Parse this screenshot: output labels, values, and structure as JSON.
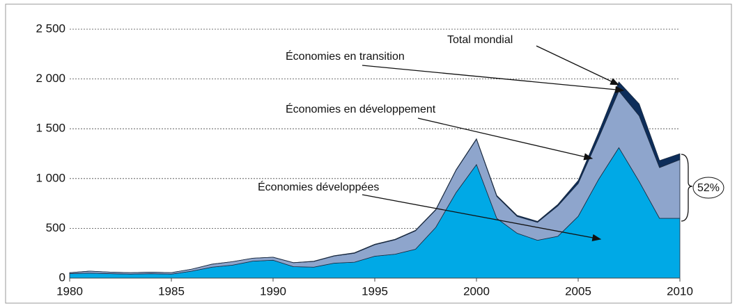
{
  "chart_data": {
    "type": "stacked_area",
    "x": [
      1980,
      1981,
      1982,
      1983,
      1984,
      1985,
      1986,
      1987,
      1988,
      1989,
      1990,
      1991,
      1992,
      1993,
      1994,
      1995,
      1996,
      1997,
      1998,
      1999,
      2000,
      2001,
      2002,
      2003,
      2004,
      2005,
      2006,
      2007,
      2008,
      2009,
      2010
    ],
    "xlim": [
      1980,
      2010
    ],
    "xticks": [
      1980,
      1985,
      1990,
      1995,
      2000,
      2005,
      2010
    ],
    "ylim": [
      0,
      2500
    ],
    "yticks": [
      0,
      {
        "value": 500,
        "label": "500"
      },
      {
        "value": 1000,
        "label": "1 000"
      },
      {
        "value": 1500,
        "label": "1 500"
      },
      {
        "value": 2000,
        "label": "2 000"
      },
      {
        "value": 2500,
        "label": "2 500"
      }
    ],
    "grid": true,
    "series": [
      {
        "name": "Économies développées",
        "color": "#00a9e6",
        "values": [
          45,
          50,
          45,
          40,
          45,
          40,
          70,
          110,
          130,
          170,
          180,
          115,
          110,
          150,
          160,
          220,
          240,
          290,
          510,
          860,
          1140,
          600,
          450,
          380,
          420,
          620,
          990,
          1310,
          970,
          600,
          600
        ]
      },
      {
        "name": "Économies en développement",
        "color": "#8ea5cc",
        "values": [
          10,
          20,
          15,
          15,
          15,
          15,
          20,
          30,
          35,
          30,
          30,
          40,
          57,
          72,
          90,
          115,
          145,
          185,
          175,
          225,
          255,
          220,
          170,
          180,
          305,
          330,
          415,
          570,
          660,
          510,
          590
        ]
      },
      {
        "name": "Économies en transition",
        "color": "#0d2d5a",
        "values": [
          0,
          0,
          0,
          0,
          0,
          0,
          0,
          0,
          0,
          0,
          0,
          0,
          3,
          3,
          5,
          5,
          5,
          5,
          5,
          5,
          5,
          10,
          10,
          10,
          15,
          30,
          55,
          90,
          120,
          70,
          60
        ]
      }
    ],
    "total_label": "Total mondial",
    "share_label": "52%"
  }
}
